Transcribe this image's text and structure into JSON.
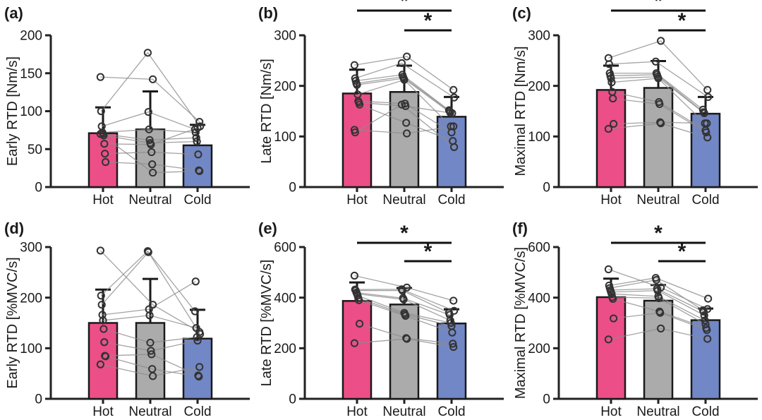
{
  "figure": {
    "description": "Six-panel bar chart figure comparing rate of torque development (RTD) across Hot, Neutral and Cold conditions with individual paired data points",
    "categories": [
      "Hot",
      "Neutral",
      "Cold"
    ],
    "significance_symbol": "*",
    "colors": {
      "hot_bar": "#EC4E87",
      "neutral_bar": "#ABABAB",
      "cold_bar": "#7287C5",
      "bar_edge": "#1a1a1a",
      "axis": "#222222",
      "subject_line": "#8C8C8C",
      "marker_stroke": "#333333",
      "significance": "#111111"
    }
  },
  "chart_data": [
    {
      "id": "a",
      "label": "(a)",
      "type": "bar",
      "ylabel": "Early RTD [Nm/s]",
      "ylim": [
        0,
        200
      ],
      "yticks": [
        0,
        50,
        100,
        150,
        200
      ],
      "categories": [
        "Hot",
        "Neutral",
        "Cold"
      ],
      "means": [
        71,
        76,
        55
      ],
      "sd_top": [
        105,
        126,
        82
      ],
      "subjects": [
        [
          145,
          142,
          86
        ],
        [
          100,
          177,
          80
        ],
        [
          80,
          99,
          76
        ],
        [
          72,
          76,
          72
        ],
        [
          70,
          62,
          65
        ],
        [
          68,
          58,
          60
        ],
        [
          57,
          56,
          78
        ],
        [
          44,
          46,
          43
        ],
        [
          33,
          30,
          22
        ],
        [
          70,
          19,
          21
        ]
      ],
      "significance": []
    },
    {
      "id": "b",
      "label": "(b)",
      "type": "bar",
      "ylabel": "Late RTD [Nm/s]",
      "ylim": [
        0,
        300
      ],
      "yticks": [
        0,
        100,
        200,
        300
      ],
      "categories": [
        "Hot",
        "Neutral",
        "Cold"
      ],
      "means": [
        185,
        188,
        139
      ],
      "sd_top": [
        232,
        240,
        178
      ],
      "subjects": [
        [
          241,
          258,
          192
        ],
        [
          215,
          245,
          177
        ],
        [
          210,
          222,
          152
        ],
        [
          205,
          218,
          150
        ],
        [
          202,
          215,
          147
        ],
        [
          183,
          212,
          120
        ],
        [
          170,
          165,
          108
        ],
        [
          167,
          160,
          146
        ],
        [
          163,
          127,
          91
        ],
        [
          113,
          106,
          120
        ],
        [
          108,
          163,
          79
        ]
      ],
      "significance": [
        {
          "pair": [
            0,
            2
          ],
          "label": "*"
        },
        {
          "pair": [
            1,
            2
          ],
          "label": "*"
        }
      ]
    },
    {
      "id": "c",
      "label": "(c)",
      "type": "bar",
      "ylabel": "Maximal RTD [Nm/s]",
      "ylim": [
        0,
        300
      ],
      "yticks": [
        0,
        100,
        200,
        300
      ],
      "categories": [
        "Hot",
        "Neutral",
        "Cold"
      ],
      "means": [
        192,
        196,
        145
      ],
      "sd_top": [
        240,
        249,
        178
      ],
      "subjects": [
        [
          255,
          289,
          192
        ],
        [
          243,
          248,
          178
        ],
        [
          225,
          225,
          153
        ],
        [
          220,
          222,
          148
        ],
        [
          215,
          218,
          146
        ],
        [
          207,
          215,
          126
        ],
        [
          188,
          168,
          112
        ],
        [
          175,
          164,
          108
        ],
        [
          125,
          128,
          126
        ],
        [
          115,
          126,
          98
        ]
      ],
      "significance": [
        {
          "pair": [
            0,
            2
          ],
          "label": "*"
        },
        {
          "pair": [
            1,
            2
          ],
          "label": "*"
        }
      ]
    },
    {
      "id": "d",
      "label": "(d)",
      "type": "bar",
      "ylabel": "Early RTD [%MVC/s]",
      "ylim": [
        0,
        300
      ],
      "yticks": [
        0,
        100,
        200,
        300
      ],
      "categories": [
        "Hot",
        "Neutral",
        "Cold"
      ],
      "means": [
        150,
        150,
        119
      ],
      "sd_top": [
        216,
        237,
        176
      ],
      "subjects": [
        [
          293,
          186,
          132
        ],
        [
          204,
          292,
          128
        ],
        [
          186,
          290,
          173
        ],
        [
          166,
          177,
          232
        ],
        [
          155,
          165,
          140
        ],
        [
          138,
          111,
          122
        ],
        [
          112,
          95,
          115
        ],
        [
          85,
          88,
          46
        ],
        [
          84,
          59,
          44
        ],
        [
          68,
          45,
          63
        ]
      ],
      "significance": []
    },
    {
      "id": "e",
      "label": "(e)",
      "type": "bar",
      "ylabel": "Late RTD [%MVC/s]",
      "ylim": [
        0,
        600
      ],
      "yticks": [
        0,
        200,
        400,
        600
      ],
      "categories": [
        "Hot",
        "Neutral",
        "Cold"
      ],
      "means": [
        387,
        373,
        298
      ],
      "sd_top": [
        460,
        438,
        354
      ],
      "subjects": [
        [
          487,
          440,
          388
        ],
        [
          432,
          433,
          348
        ],
        [
          428,
          428,
          340
        ],
        [
          420,
          398,
          332
        ],
        [
          415,
          393,
          310
        ],
        [
          408,
          340,
          300
        ],
        [
          398,
          334,
          288
        ],
        [
          390,
          328,
          262
        ],
        [
          297,
          240,
          218
        ],
        [
          220,
          237,
          205
        ]
      ],
      "significance": [
        {
          "pair": [
            0,
            2
          ],
          "label": "*"
        },
        {
          "pair": [
            1,
            2
          ],
          "label": "*"
        }
      ]
    },
    {
      "id": "f",
      "label": "(f)",
      "type": "bar",
      "ylabel": "Maximal RTD [%MVC/s]",
      "ylim": [
        0,
        600
      ],
      "yticks": [
        0,
        200,
        400,
        600
      ],
      "categories": [
        "Hot",
        "Neutral",
        "Cold"
      ],
      "means": [
        402,
        388,
        311
      ],
      "sd_top": [
        475,
        450,
        357
      ],
      "subjects": [
        [
          512,
          440,
          355
        ],
        [
          448,
          478,
          396
        ],
        [
          438,
          470,
          350
        ],
        [
          430,
          435,
          345
        ],
        [
          422,
          428,
          330
        ],
        [
          415,
          405,
          310
        ],
        [
          402,
          398,
          295
        ],
        [
          395,
          345,
          280
        ],
        [
          318,
          340,
          272
        ],
        [
          235,
          278,
          237
        ]
      ],
      "significance": [
        {
          "pair": [
            0,
            2
          ],
          "label": "*"
        },
        {
          "pair": [
            1,
            2
          ],
          "label": "*"
        }
      ]
    }
  ]
}
